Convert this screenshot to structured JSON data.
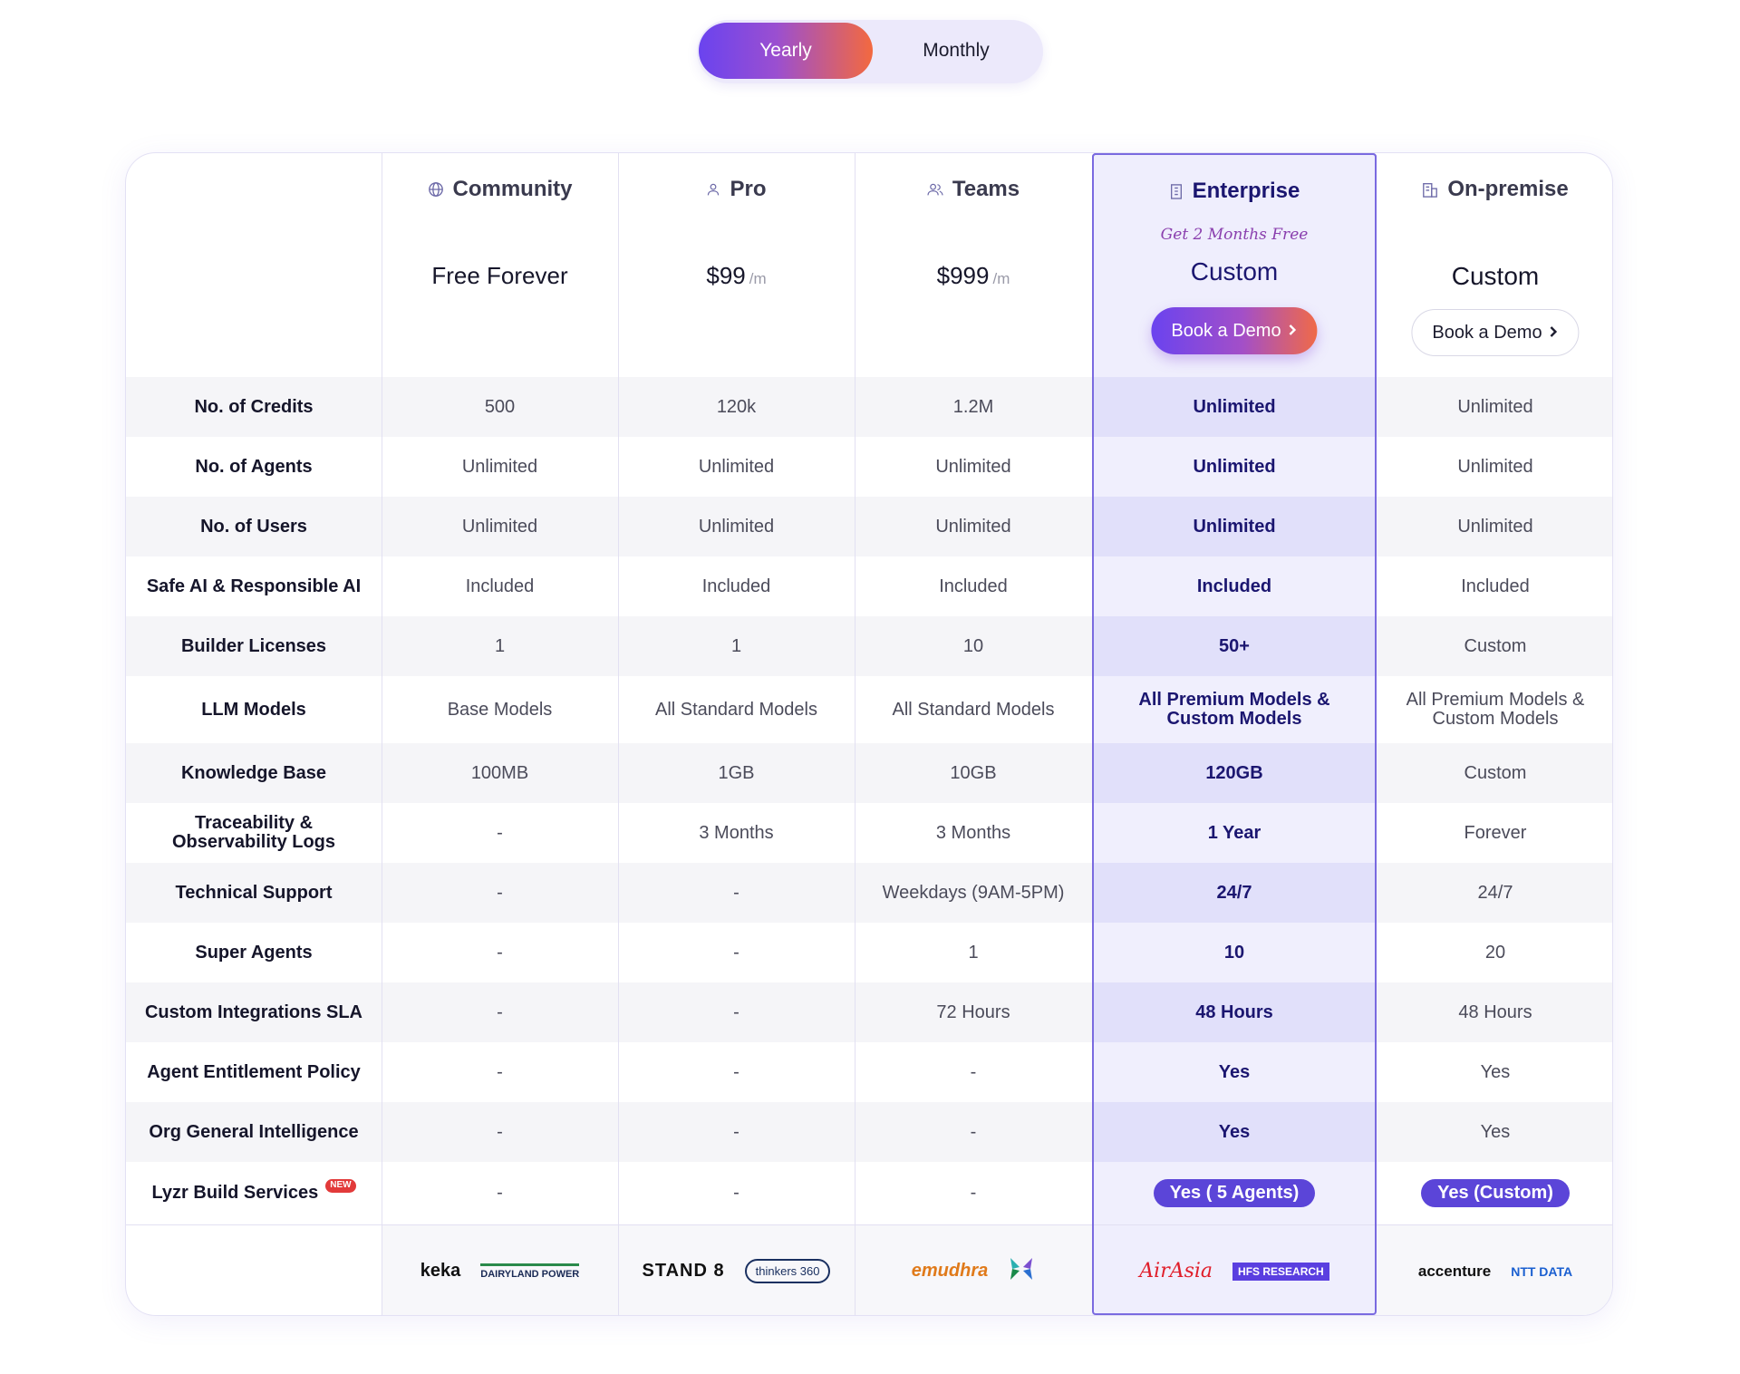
{
  "toggle": {
    "yearly": "Yearly",
    "monthly": "Monthly",
    "selected": "Yearly"
  },
  "plans": [
    {
      "name": "Community",
      "icon": "globe-icon",
      "price": "Free Forever",
      "unit": ""
    },
    {
      "name": "Pro",
      "icon": "user-icon",
      "price": "$99",
      "unit": "/m"
    },
    {
      "name": "Teams",
      "icon": "users-icon",
      "price": "$999",
      "unit": "/m"
    },
    {
      "name": "Enterprise",
      "icon": "building-icon",
      "promo": "Get 2 Months Free",
      "price": "Custom",
      "button": "Book a Demo"
    },
    {
      "name": "On-premise",
      "icon": "office-icon",
      "price": "Custom",
      "button": "Book a Demo"
    }
  ],
  "rows": [
    {
      "label": "No. of Credits",
      "values": [
        "500",
        "120k",
        "1.2M",
        "Unlimited",
        "Unlimited"
      ]
    },
    {
      "label": "No. of Agents",
      "values": [
        "Unlimited",
        "Unlimited",
        "Unlimited",
        "Unlimited",
        "Unlimited"
      ]
    },
    {
      "label": "No. of Users",
      "values": [
        "Unlimited",
        "Unlimited",
        "Unlimited",
        "Unlimited",
        "Unlimited"
      ]
    },
    {
      "label": "Safe AI & Responsible AI",
      "values": [
        "Included",
        "Included",
        "Included",
        "Included",
        "Included"
      ]
    },
    {
      "label": "Builder Licenses",
      "values": [
        "1",
        "1",
        "10",
        "50+",
        "Custom"
      ]
    },
    {
      "label": "LLM Models",
      "values": [
        "Base Models",
        "All Standard Models",
        "All Standard Models",
        "All Premium Models & Custom Models",
        "All Premium Models & Custom Models"
      ]
    },
    {
      "label": "Knowledge Base",
      "values": [
        "100MB",
        "1GB",
        "10GB",
        "120GB",
        "Custom"
      ]
    },
    {
      "label": "Traceability & Observability Logs",
      "values": [
        "-",
        "3 Months",
        "3 Months",
        "1 Year",
        "Forever"
      ]
    },
    {
      "label": "Technical Support",
      "values": [
        "-",
        "-",
        "Weekdays (9AM-5PM)",
        "24/7",
        "24/7"
      ]
    },
    {
      "label": "Super Agents",
      "values": [
        "-",
        "-",
        "1",
        "10",
        "20"
      ]
    },
    {
      "label": "Custom Integrations SLA",
      "values": [
        "-",
        "-",
        "72 Hours",
        "48 Hours",
        "48 Hours"
      ]
    },
    {
      "label": "Agent Entitlement Policy",
      "values": [
        "-",
        "-",
        "-",
        "Yes",
        "Yes"
      ]
    },
    {
      "label": "Org General Intelligence",
      "values": [
        "-",
        "-",
        "-",
        "Yes",
        "Yes"
      ]
    },
    {
      "label": "Lyzr Build Services",
      "badge": "NEW",
      "values": [
        "-",
        "-",
        "-",
        "Yes ( 5 Agents)",
        "Yes (Custom)"
      ]
    }
  ],
  "logos": [
    [
      "keka",
      "DAIRYLAND POWER"
    ],
    [
      "STAND 8",
      "thinkers 360"
    ],
    [
      "emudhra",
      "x-mark-logo"
    ],
    [
      "AirAsia",
      "HFS RESEARCH"
    ],
    [
      "accenture",
      "NTT DATA"
    ]
  ],
  "colors": {
    "accent": "#6a43ef",
    "accent2": "#f3693f",
    "enterprise_bg": "#efeefd",
    "enterprise_border": "#7a6ae0",
    "pill": "#5b45d8"
  }
}
